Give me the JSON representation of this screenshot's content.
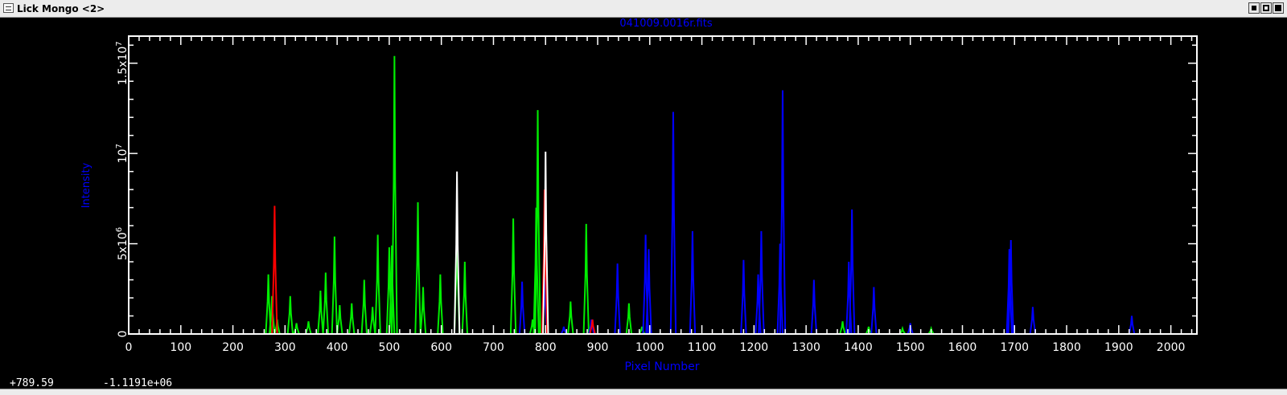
{
  "window": {
    "title": "Lick Mongo <2>"
  },
  "status": {
    "x_readout": "+789.59",
    "y_readout": "-1.1191e+06"
  },
  "colors": {
    "background": "#000000",
    "axes": "#ffffff",
    "label": "#0000ff",
    "green": "#00ee00",
    "blue": "#0000ff",
    "red": "#ff0000",
    "white": "#ffffff"
  },
  "chart_data": {
    "type": "line",
    "title": "041009.0016r.fits",
    "xlabel": "Pixel Number",
    "ylabel": "Intensity",
    "xlim": [
      0,
      2050
    ],
    "ylim": [
      0,
      16500000
    ],
    "grid": false,
    "x_ticks": [
      0,
      100,
      200,
      300,
      400,
      500,
      600,
      700,
      800,
      900,
      1000,
      1100,
      1200,
      1300,
      1400,
      1500,
      1600,
      1700,
      1800,
      1900,
      2000
    ],
    "x_tick_labels": [
      "0",
      "100",
      "200",
      "300",
      "400",
      "500",
      "600",
      "700",
      "800",
      "900",
      "1000",
      "1100",
      "1200",
      "1300",
      "1400",
      "1500",
      "1600",
      "1700",
      "1800",
      "1900",
      "2000"
    ],
    "y_ticks": [
      0,
      5000000,
      10000000,
      15000000
    ],
    "y_tick_labels": [
      {
        "mantissa": "0",
        "exponent": ""
      },
      {
        "mantissa": "5x10",
        "exponent": "6"
      },
      {
        "mantissa": "10",
        "exponent": "7"
      },
      {
        "mantissa": "1.5x10",
        "exponent": "7"
      }
    ],
    "series": [
      {
        "color": "#00ee00",
        "peaks": [
          [
            268,
            3300000
          ],
          [
            275,
            2100000
          ],
          [
            285,
            800000
          ],
          [
            310,
            2100000
          ],
          [
            322,
            600000
          ],
          [
            345,
            700000
          ],
          [
            368,
            2400000
          ],
          [
            378,
            3400000
          ],
          [
            395,
            5400000
          ],
          [
            405,
            1600000
          ],
          [
            428,
            1700000
          ],
          [
            452,
            3000000
          ],
          [
            468,
            1500000
          ],
          [
            478,
            5500000
          ],
          [
            500,
            4800000
          ],
          [
            505,
            4900000
          ],
          [
            510,
            15400000
          ],
          [
            555,
            7300000
          ],
          [
            565,
            2600000
          ],
          [
            598,
            3300000
          ],
          [
            630,
            5900000
          ],
          [
            645,
            4000000
          ],
          [
            738,
            6400000
          ],
          [
            775,
            800000
          ],
          [
            782,
            7000000
          ],
          [
            785,
            12400000
          ],
          [
            848,
            1800000
          ],
          [
            878,
            6100000
          ],
          [
            960,
            1700000
          ],
          [
            985,
            400000
          ],
          [
            1370,
            700000
          ],
          [
            1420,
            400000
          ],
          [
            1485,
            300000
          ],
          [
            1540,
            300000
          ]
        ]
      },
      {
        "color": "#0000ff",
        "peaks": [
          [
            755,
            2900000
          ],
          [
            798,
            3100000
          ],
          [
            835,
            400000
          ],
          [
            888,
            800000
          ],
          [
            938,
            3900000
          ],
          [
            992,
            5500000
          ],
          [
            998,
            4700000
          ],
          [
            1045,
            12300000
          ],
          [
            1082,
            5700000
          ],
          [
            1180,
            4100000
          ],
          [
            1208,
            3300000
          ],
          [
            1214,
            5700000
          ],
          [
            1250,
            5000000
          ],
          [
            1255,
            13500000
          ],
          [
            1315,
            3000000
          ],
          [
            1382,
            4000000
          ],
          [
            1388,
            6900000
          ],
          [
            1430,
            2600000
          ],
          [
            1500,
            600000
          ],
          [
            1690,
            4700000
          ],
          [
            1693,
            5200000
          ],
          [
            1735,
            1500000
          ],
          [
            1925,
            1000000
          ]
        ]
      },
      {
        "color": "#ff0000",
        "peaks": [
          [
            280,
            7100000
          ],
          [
            798,
            8000000
          ],
          [
            890,
            800000
          ]
        ]
      },
      {
        "color": "#ffffff",
        "peaks": [
          [
            630,
            9000000
          ],
          [
            800,
            10100000
          ]
        ]
      }
    ]
  }
}
